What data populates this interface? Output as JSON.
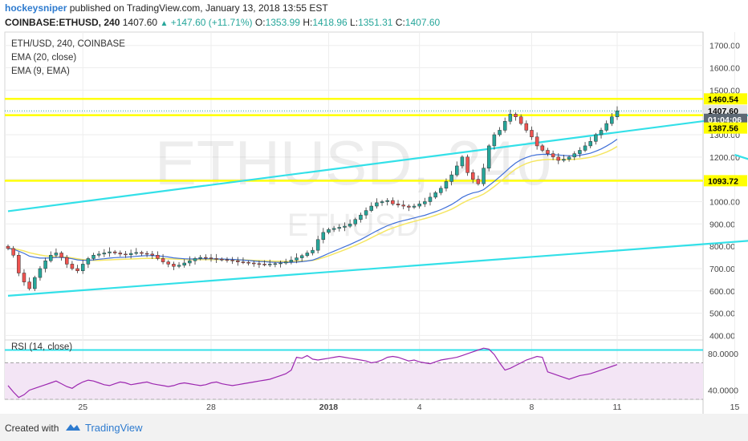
{
  "header": {
    "username": "hockeysniper",
    "published_text": "published on TradingView.com, January 13, 2018 13:55 EST",
    "symbol": "COINBASE:ETHUSD, 240",
    "last": "1407.60",
    "change": "+147.60 (+11.71%)",
    "ohlc": {
      "o_label": "O:",
      "o": "1353.99",
      "h_label": "H:",
      "h": "1418.96",
      "l_label": "L:",
      "l": "1351.31",
      "c_label": "C:",
      "c": "1407.60"
    }
  },
  "legend": {
    "pair": "ETH/USD, 240, COINBASE",
    "ema1": "EMA (20, close)",
    "ema2": "EMA (9, EMA)",
    "rsi": "RSI (14, close)"
  },
  "watermark": {
    "big": "ETHUSD, 240",
    "small": "ETHUSD"
  },
  "footer": {
    "created": "Created with",
    "brand": "TradingView"
  },
  "colors": {
    "up": "#26a69a",
    "down": "#ef5350",
    "ema1": "#3f6fd8",
    "ema2": "#f5e663",
    "level": "#ffff00",
    "trend": "#33e0e8",
    "rsi_line": "#9c27b0",
    "rsi_bg": "#f3e5f5"
  },
  "chart_data": [
    {
      "type": "candlestick",
      "title": "ETH/USD, 240, COINBASE",
      "x_tick_labels": [
        "25",
        "28",
        "2018",
        "4",
        "8",
        "11",
        "15"
      ],
      "y_tick_labels": [
        "1700.00",
        "1600.00",
        "1500.00",
        "1400.00",
        "1300.00",
        "1200.00",
        "1100.00",
        "1000.00",
        "900.00",
        "800.00",
        "700.00",
        "600.00",
        "500.00",
        "400.00"
      ],
      "ylim": [
        380,
        1760
      ],
      "price_markers": [
        {
          "label": "1460.54",
          "value": 1460.54,
          "style": "level"
        },
        {
          "label": "1407.60",
          "value": 1407.6,
          "style": "last"
        },
        {
          "label": "01:04:06",
          "value": 1369,
          "style": "timer"
        },
        {
          "label": "1387.56",
          "value": 1330,
          "style": "level"
        },
        {
          "label": "1093.72",
          "value": 1093.72,
          "style": "level"
        }
      ],
      "horizontal_levels": [
        1460.54,
        1387.56,
        1093.72
      ],
      "trendlines": [
        {
          "name": "channel-upper",
          "from": [
            0,
            957
          ],
          "to": [
            175,
            1500
          ]
        },
        {
          "name": "channel-lower",
          "from": [
            0,
            578
          ],
          "to": [
            181,
            900
          ]
        },
        {
          "name": "flag-upper",
          "from": [
            140,
            1430
          ],
          "to": [
            154,
            1215
          ]
        },
        {
          "name": "flag-lower",
          "from": [
            136,
            1210
          ],
          "to": [
            155,
            1065
          ]
        }
      ],
      "grid": true,
      "closes": [
        790,
        760,
        680,
        640,
        610,
        660,
        700,
        735,
        760,
        770,
        750,
        720,
        700,
        690,
        720,
        745,
        760,
        765,
        770,
        775,
        770,
        765,
        762,
        768,
        772,
        768,
        765,
        760,
        745,
        730,
        720,
        710,
        715,
        725,
        735,
        745,
        750,
        748,
        745,
        742,
        740,
        738,
        735,
        730,
        728,
        725,
        722,
        720,
        718,
        720,
        722,
        725,
        730,
        738,
        748,
        758,
        770,
        782,
        830,
        862,
        875,
        880,
        885,
        890,
        900,
        920,
        940,
        960,
        980,
        995,
        1000,
        1005,
        990,
        985,
        980,
        975,
        980,
        990,
        1000,
        1020,
        1040,
        1060,
        1090,
        1120,
        1160,
        1200,
        1130,
        1100,
        1080,
        1150,
        1250,
        1300,
        1320,
        1360,
        1392,
        1380,
        1350,
        1320,
        1290,
        1250,
        1230,
        1215,
        1200,
        1185,
        1190,
        1200,
        1215,
        1230,
        1250,
        1270,
        1300,
        1320,
        1350,
        1380,
        1407
      ],
      "ema20": [
        790,
        787,
        778,
        768,
        756,
        751,
        747,
        747,
        748,
        750,
        750,
        748,
        744,
        739,
        737,
        737,
        739,
        742,
        744,
        747,
        749,
        750,
        751,
        753,
        755,
        757,
        758,
        758,
        757,
        755,
        752,
        748,
        746,
        744,
        743,
        743,
        744,
        744,
        744,
        743,
        743,
        742,
        741,
        740,
        738,
        736,
        734,
        732,
        731,
        729,
        728,
        728,
        727,
        728,
        729,
        731,
        734,
        738,
        747,
        757,
        768,
        778,
        788,
        798,
        808,
        819,
        830,
        843,
        856,
        869,
        881,
        892,
        901,
        909,
        915,
        921,
        927,
        933,
        939,
        947,
        955,
        964,
        975,
        987,
        1002,
        1019,
        1031,
        1039,
        1044,
        1054,
        1072,
        1091,
        1111,
        1132,
        1154,
        1173,
        1188,
        1198,
        1206,
        1210,
        1212,
        1212,
        1211,
        1209,
        1207,
        1206,
        1206,
        1208,
        1212,
        1217,
        1226,
        1236,
        1249,
        1263,
        1280
      ],
      "ema9": [
        790,
        789,
        785,
        779,
        771,
        766,
        761,
        757,
        755,
        753,
        752,
        751,
        748,
        744,
        740,
        738,
        737,
        737,
        738,
        739,
        740,
        741,
        742,
        743,
        744,
        745,
        746,
        746,
        746,
        745,
        744,
        743,
        742,
        741,
        740,
        740,
        740,
        740,
        740,
        740,
        740,
        740,
        740,
        739,
        739,
        738,
        737,
        736,
        735,
        734,
        733,
        733,
        732,
        732,
        733,
        734,
        735,
        737,
        742,
        749,
        757,
        766,
        775,
        784,
        794,
        804,
        815,
        826,
        838,
        850,
        862,
        873,
        882,
        890,
        898,
        905,
        911,
        918,
        924,
        931,
        939,
        947,
        956,
        966,
        979,
        993,
        1005,
        1015,
        1023,
        1034,
        1050,
        1068,
        1087,
        1107,
        1128,
        1146,
        1160,
        1171,
        1179,
        1184,
        1187,
        1189,
        1189,
        1189,
        1189,
        1189,
        1190,
        1192,
        1195,
        1199,
        1205,
        1213,
        1222,
        1233,
        1247
      ]
    },
    {
      "type": "line",
      "title": "RSI (14, close)",
      "y_tick_labels": [
        "80.0000",
        "40.0000"
      ],
      "ylim": [
        30,
        95
      ],
      "reference_lines": [
        70,
        30
      ],
      "highlight_line": 84,
      "values": [
        45,
        38,
        32,
        35,
        40,
        42,
        44,
        46,
        48,
        50,
        47,
        44,
        42,
        46,
        49,
        51,
        50,
        48,
        46,
        45,
        47,
        49,
        48,
        46,
        47,
        48,
        49,
        47,
        46,
        45,
        44,
        45,
        47,
        48,
        47,
        46,
        45,
        46,
        48,
        49,
        47,
        46,
        45,
        46,
        47,
        48,
        49,
        50,
        51,
        52,
        54,
        56,
        58,
        62,
        76,
        75,
        78,
        74,
        73,
        74,
        75,
        76,
        77,
        76,
        75,
        74,
        73,
        72,
        70,
        71,
        73,
        76,
        77,
        76,
        74,
        72,
        73,
        71,
        70,
        69,
        71,
        73,
        74,
        75,
        76,
        78,
        80,
        82,
        84,
        86,
        85,
        79,
        70,
        62,
        64,
        67,
        70,
        73,
        75,
        77,
        76,
        60,
        58,
        56,
        54,
        52,
        54,
        56,
        57,
        58,
        60,
        62,
        64,
        66,
        68
      ]
    }
  ]
}
